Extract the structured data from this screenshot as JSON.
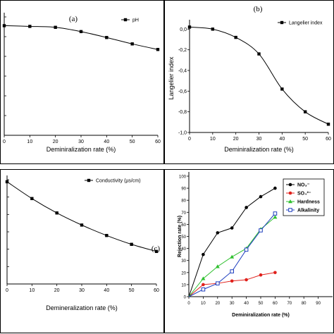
{
  "chart_data": [
    {
      "id": "a",
      "type": "line",
      "panel_label": "(a)",
      "ylabel": "",
      "xlabel": "Deminiralization rate  (%)",
      "xticks": [
        "0",
        "10",
        "20",
        "30",
        "40",
        "50",
        "60"
      ],
      "yticks": [],
      "xlim": [
        0,
        60
      ],
      "ylim": [
        0,
        1
      ],
      "legend": [
        "pH"
      ],
      "legend_position": "top-right",
      "series": [
        {
          "name": "pH",
          "marker": "square",
          "color": "#000000",
          "x": [
            0,
            10,
            20,
            30,
            40,
            50,
            60
          ],
          "y": [
            0.926,
            0.92,
            0.912,
            0.876,
            0.826,
            0.772,
            0.725
          ]
        }
      ]
    },
    {
      "id": "b",
      "type": "line",
      "panel_label": "(b)",
      "ylabel": "Langelier index",
      "xlabel": "Deminiralization rate  (%)",
      "xticks": [
        "0",
        "10",
        "20",
        "30",
        "40",
        "50",
        "60"
      ],
      "yticks": [
        "0,0",
        "-0,2",
        "-0,4",
        "-0,6",
        "-0,8",
        "-1,0"
      ],
      "ytick_values": [
        0,
        -0.2,
        -0.4,
        -0.6,
        -0.8,
        -1.0
      ],
      "xlim": [
        0,
        60
      ],
      "ylim": [
        -1.0,
        0.05
      ],
      "legend": [
        "Langelier index"
      ],
      "legend_position": "top-right",
      "series": [
        {
          "name": "Langelier index",
          "marker": "square",
          "color": "#000000",
          "x": [
            0,
            10,
            20,
            30,
            40,
            50,
            60
          ],
          "y": [
            0.02,
            0.0,
            -0.08,
            -0.24,
            -0.58,
            -0.8,
            -0.92
          ]
        }
      ]
    },
    {
      "id": "c",
      "type": "line",
      "panel_label": "(c)",
      "ylabel": "",
      "xlabel": "Demineralization rate  (%)",
      "xticks": [
        "0",
        "10",
        "20",
        "30",
        "40",
        "50",
        "60"
      ],
      "yticks": [],
      "xlim": [
        0,
        60
      ],
      "ylim": [
        0,
        1
      ],
      "legend": [
        "Conductivity  (µs/cm)"
      ],
      "legend_position": "top-right",
      "series": [
        {
          "name": "Conductivity  (µs/cm)",
          "marker": "square",
          "color": "#000000",
          "x": [
            0,
            10,
            20,
            30,
            40,
            50,
            60
          ],
          "y": [
            0.98,
            0.819,
            0.681,
            0.565,
            0.465,
            0.38,
            0.312
          ]
        }
      ]
    },
    {
      "id": "d",
      "type": "line",
      "panel_label": "",
      "ylabel": "Rejection rate (%)",
      "xlabel": "Deminiralization rate (%)",
      "xticks": [
        "0",
        "10",
        "20",
        "30",
        "40",
        "50",
        "60",
        "70",
        "80",
        "90"
      ],
      "yticks": [
        "0",
        "10",
        "20",
        "30",
        "40",
        "50",
        "60",
        "70",
        "80",
        "90",
        "100"
      ],
      "xlim": [
        0,
        100
      ],
      "ylim": [
        0,
        100
      ],
      "legend": [
        "NO₃⁻",
        "SO₄²⁻",
        "Hardness",
        "Alkalinity"
      ],
      "legend_position": "top-right",
      "series": [
        {
          "name": "NO₃⁻",
          "marker": "circle",
          "color": "#000000",
          "x": [
            0,
            10,
            20,
            30,
            40,
            50,
            60
          ],
          "y": [
            0,
            35,
            53,
            57,
            74,
            83,
            90
          ]
        },
        {
          "name": "SO₄²⁻",
          "marker": "circle",
          "color": "#e0201b",
          "x": [
            0,
            10,
            20,
            30,
            40,
            50,
            60
          ],
          "y": [
            0,
            10,
            11,
            13,
            14,
            18,
            20
          ]
        },
        {
          "name": "Hardness",
          "marker": "triangle",
          "color": "#30c030",
          "x": [
            0,
            10,
            20,
            30,
            40,
            50,
            60
          ],
          "y": [
            0,
            15,
            25,
            33,
            40,
            56,
            66
          ]
        },
        {
          "name": "Alkalinity",
          "marker": "open-square",
          "color": "#1f3fbf",
          "x": [
            0,
            10,
            20,
            30,
            40,
            50,
            60
          ],
          "y": [
            0,
            6,
            11,
            21,
            39,
            55,
            69
          ]
        }
      ]
    }
  ]
}
